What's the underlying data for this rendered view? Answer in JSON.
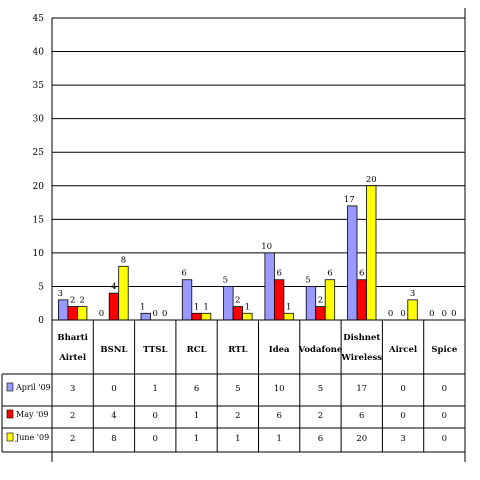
{
  "chart_data": {
    "type": "bar",
    "categories": [
      [
        "Bharti",
        "Airtel"
      ],
      [
        "BSNL"
      ],
      [
        "TTSL"
      ],
      [
        "RCL"
      ],
      [
        "RTL"
      ],
      [
        "Idea"
      ],
      [
        "Vodafone"
      ],
      [
        "Dishnet",
        "Wireless"
      ],
      [
        "Aircel"
      ],
      [
        "Spice"
      ]
    ],
    "series": [
      {
        "name": "April '09",
        "color": "#9999ff",
        "values": [
          3,
          0,
          1,
          6,
          5,
          10,
          5,
          17,
          0,
          0
        ]
      },
      {
        "name": "May '09",
        "color": "#ff0000",
        "values": [
          2,
          4,
          0,
          1,
          2,
          6,
          2,
          6,
          0,
          0
        ]
      },
      {
        "name": "June '09",
        "color": "#ffff00",
        "values": [
          2,
          8,
          0,
          1,
          1,
          1,
          6,
          20,
          3,
          0
        ]
      }
    ],
    "ylim": [
      0,
      45
    ],
    "yticks": [
      0,
      5,
      10,
      15,
      20,
      25,
      30,
      35,
      40,
      45
    ],
    "grid": true,
    "legend": "data-table"
  }
}
